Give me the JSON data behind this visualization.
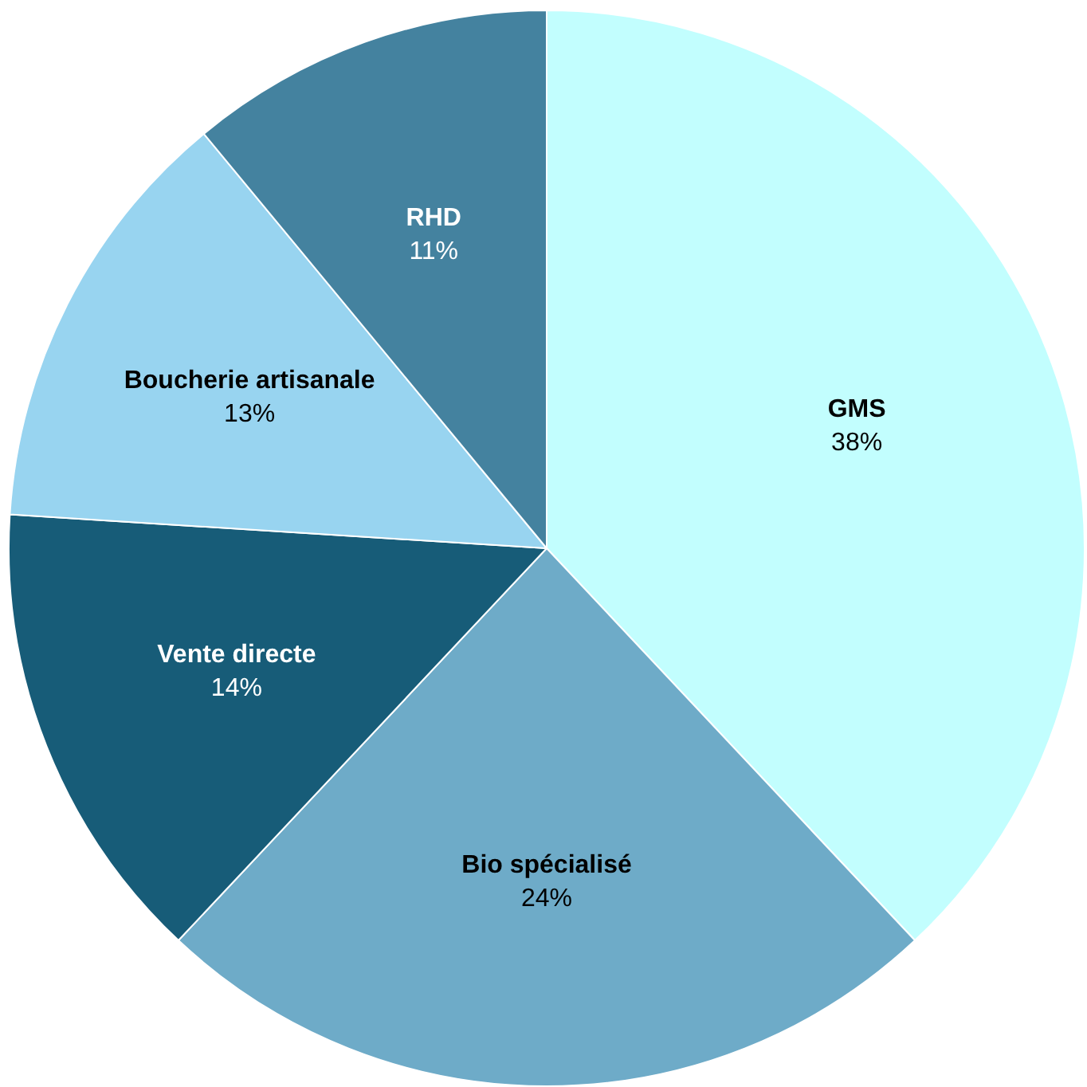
{
  "chart_data": {
    "type": "pie",
    "categories": [
      "GMS",
      "Bio spécialisé",
      "Vente directe",
      "Boucherie artisanale",
      "RHD"
    ],
    "values": [
      38,
      24,
      14,
      13,
      11
    ],
    "colors": [
      "#c2fefe",
      "#6eabc8",
      "#175c78",
      "#98d4f0",
      "#44829f"
    ],
    "value_labels": [
      "38%",
      "24%",
      "14%",
      "13%",
      "11%"
    ],
    "legend": false
  }
}
